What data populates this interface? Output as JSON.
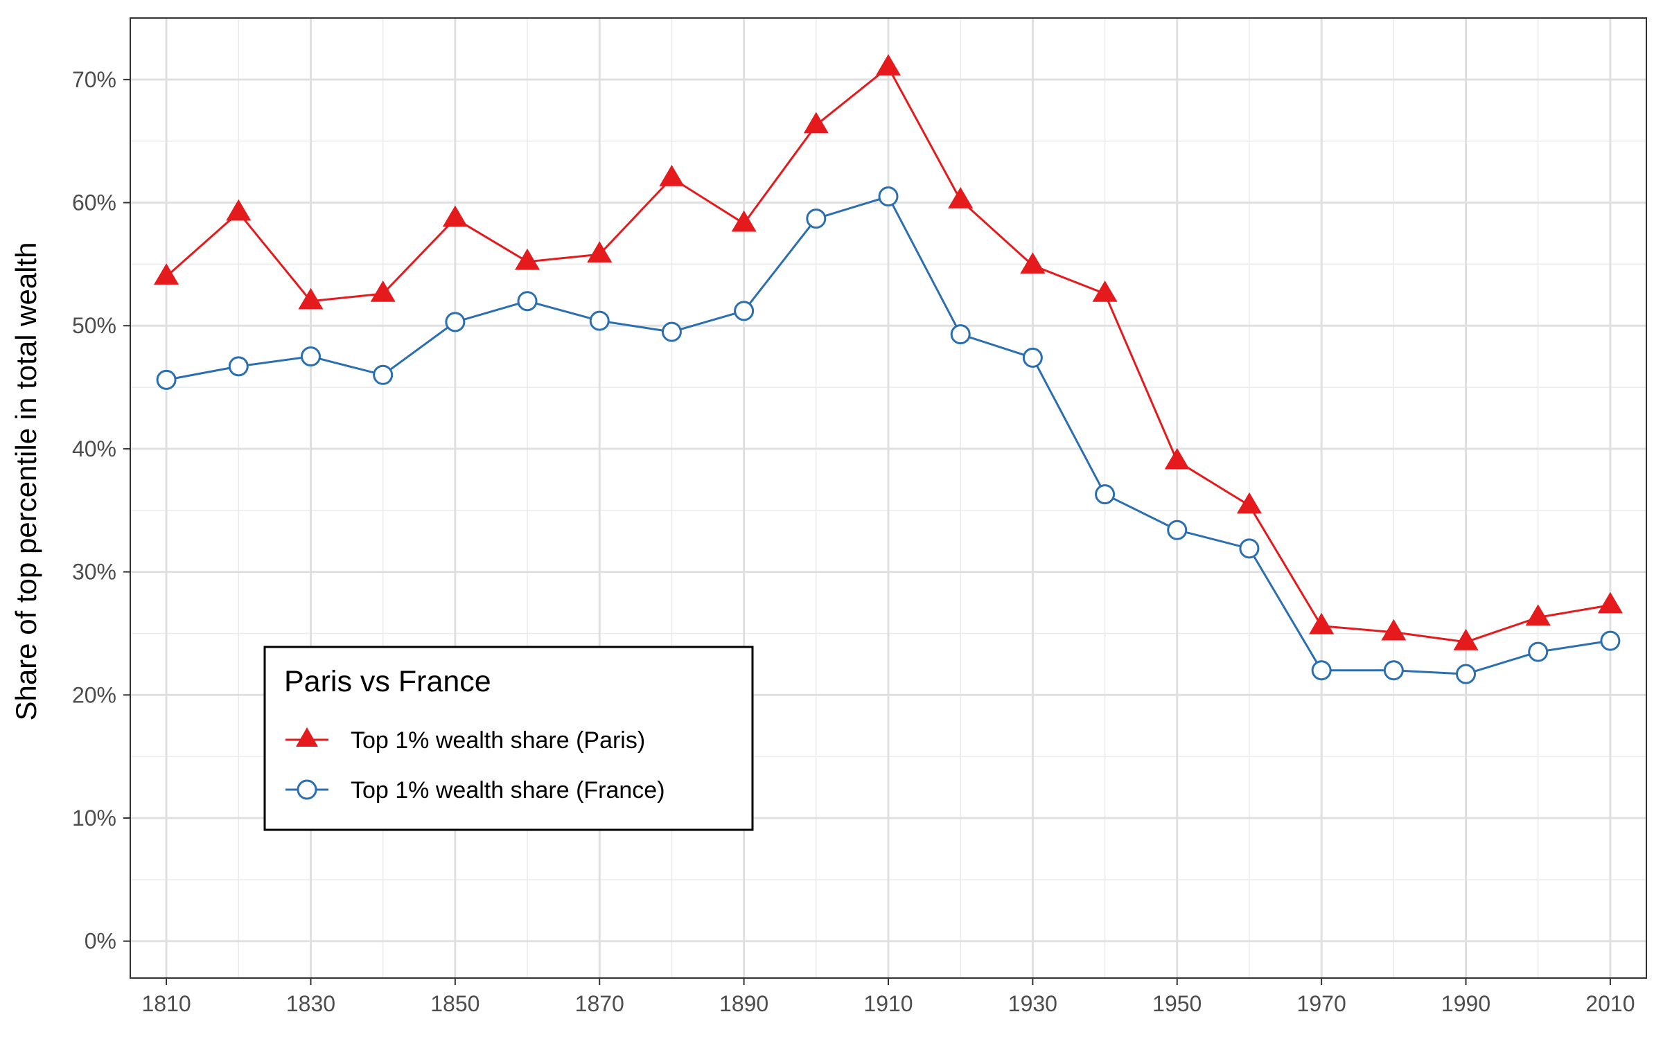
{
  "chart_data": {
    "type": "line",
    "title": "",
    "xlabel": "",
    "ylabel": "Share of top percentile in total wealth",
    "x": [
      1810,
      1820,
      1830,
      1840,
      1850,
      1860,
      1870,
      1880,
      1890,
      1900,
      1910,
      1920,
      1930,
      1940,
      1950,
      1960,
      1970,
      1980,
      1990,
      2000,
      2010
    ],
    "xlim": [
      1805,
      2015
    ],
    "ylim": [
      -3,
      75
    ],
    "x_ticks": [
      1810,
      1830,
      1850,
      1870,
      1890,
      1910,
      1930,
      1950,
      1970,
      1990,
      2010
    ],
    "x_tick_labels": [
      "1810",
      "1830",
      "1850",
      "1870",
      "1890",
      "1910",
      "1930",
      "1950",
      "1970",
      "1990",
      "2010"
    ],
    "y_ticks": [
      0,
      10,
      20,
      30,
      40,
      50,
      60,
      70
    ],
    "y_tick_labels": [
      "0%",
      "10%",
      "20%",
      "30%",
      "40%",
      "50%",
      "60%",
      "70%"
    ],
    "grid": true,
    "legend": {
      "title": "Paris vs France",
      "position": "bottom-left inside"
    },
    "series": [
      {
        "name": "Top 1% wealth share (Paris)",
        "color": "#e41a1c",
        "marker": "filled-triangle",
        "values": [
          54.0,
          59.2,
          52.0,
          52.6,
          58.7,
          55.2,
          55.8,
          62.0,
          58.3,
          66.3,
          71.0,
          60.2,
          54.9,
          52.6,
          39.0,
          35.4,
          25.6,
          25.1,
          24.3,
          26.3,
          27.3
        ]
      },
      {
        "name": "Top 1% wealth share (France)",
        "color": "#2b6fb0",
        "marker": "open-circle",
        "values": [
          45.6,
          46.7,
          47.5,
          46.0,
          50.3,
          52.0,
          50.4,
          49.5,
          51.2,
          58.7,
          60.5,
          49.3,
          47.4,
          36.3,
          33.4,
          31.9,
          22.0,
          22.0,
          21.7,
          23.5,
          24.4
        ]
      }
    ]
  }
}
